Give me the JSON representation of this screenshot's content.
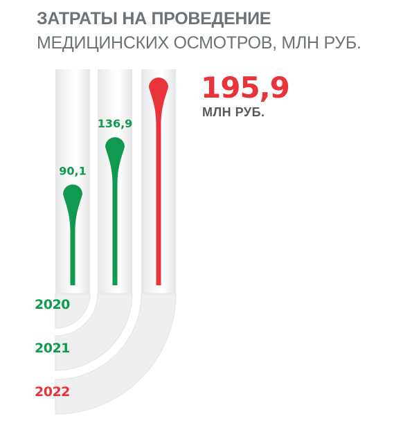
{
  "title_bold": "ЗАТРАТЫ НА ПРОВЕДЕНИЕ",
  "title_rest": " МЕДИЦИНСКИХ ОСМОТРОВ, МЛН РУБ.",
  "highlight": {
    "value": "195,9",
    "unit": "МЛН РУБ."
  },
  "colors": {
    "green": "#0f9a4f",
    "red": "#e8333a",
    "text": "#6b7377"
  },
  "chart_data": {
    "type": "bar",
    "title": "ЗАТРАТЫ НА ПРОВЕДЕНИЕ МЕДИЦИНСКИХ ОСМОТРОВ, МЛН РУБ.",
    "categories": [
      "2020",
      "2021",
      "2022"
    ],
    "values": [
      90.1,
      136.9,
      195.9
    ],
    "value_labels": [
      "90,1",
      "136,9",
      "195,9"
    ],
    "ylim": [
      0,
      200
    ],
    "highlight_index": 2,
    "grid": false,
    "legend": "none"
  }
}
